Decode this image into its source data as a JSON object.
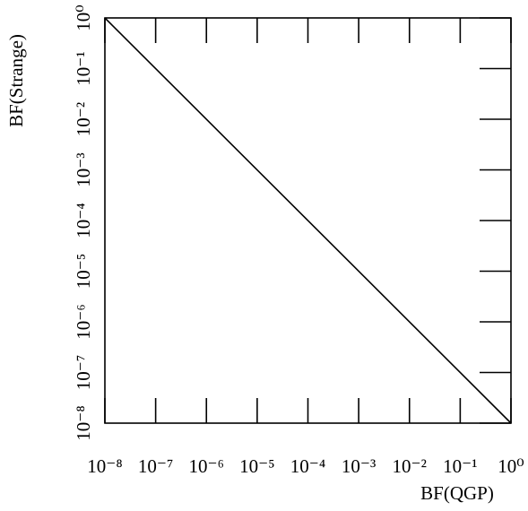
{
  "chart_data": {
    "type": "line",
    "x_label": "BF(QGP)",
    "y_label": "BF(Strange)",
    "x": [
      1e-08,
      1
    ],
    "series": [
      {
        "color": "#000000",
        "values": [
          1,
          1e-08
        ]
      }
    ],
    "x_log": true,
    "y_log": true,
    "xlim": [
      1e-08,
      1
    ],
    "ylim": [
      1e-08,
      1
    ],
    "xticks": [
      {
        "value": 1e-08,
        "label": "10⁻⁸"
      },
      {
        "value": 1e-07,
        "label": "10⁻⁷"
      },
      {
        "value": 1e-06,
        "label": "10⁻⁶"
      },
      {
        "value": 1e-05,
        "label": "10⁻⁵"
      },
      {
        "value": 0.0001,
        "label": "10⁻⁴"
      },
      {
        "value": 0.001,
        "label": "10⁻³"
      },
      {
        "value": 0.01,
        "label": "10⁻²"
      },
      {
        "value": 0.1,
        "label": "10⁻¹"
      },
      {
        "value": 1,
        "label": "10⁰"
      }
    ],
    "yticks": [
      {
        "value": 1e-08,
        "label": "10⁻⁸"
      },
      {
        "value": 1e-07,
        "label": "10⁻⁷"
      },
      {
        "value": 1e-06,
        "label": "10⁻⁶"
      },
      {
        "value": 1e-05,
        "label": "10⁻⁵"
      },
      {
        "value": 0.0001,
        "label": "10⁻⁴"
      },
      {
        "value": 0.001,
        "label": "10⁻³"
      },
      {
        "value": 0.01,
        "label": "10⁻²"
      },
      {
        "value": 0.1,
        "label": "10⁻¹"
      },
      {
        "value": 1,
        "label": "10⁰"
      }
    ],
    "grid": false
  }
}
